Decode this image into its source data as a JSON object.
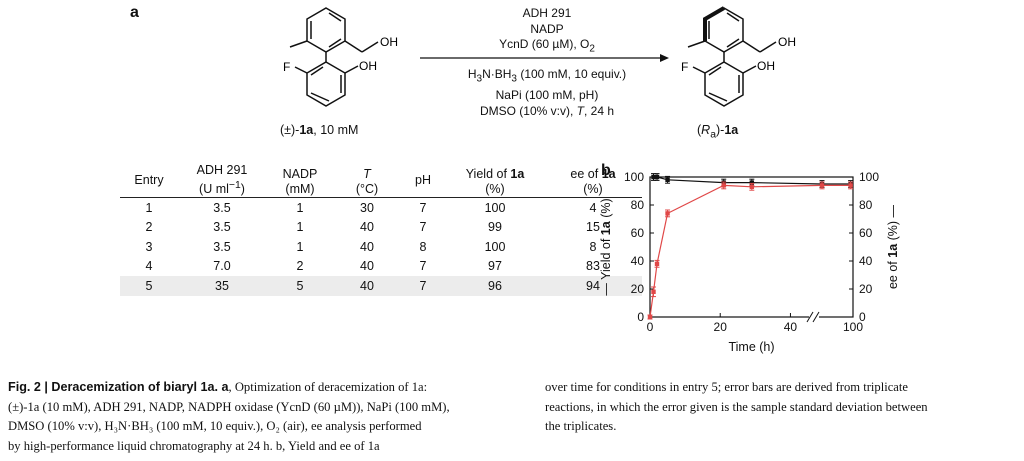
{
  "panel_a": {
    "label": "a",
    "reactant": {
      "prefix": "(±)-",
      "name": "1a",
      "suffix": ", 10 mM",
      "atoms": {
        "oh": "OH",
        "f": "F"
      }
    },
    "product": {
      "prefix": "(",
      "r": "R",
      "sub": "a",
      "mid": ")-",
      "name": "1a"
    },
    "conditions_above": [
      "ADH 291",
      "NADP"
    ],
    "ycnd": {
      "text": "YcnD (60 µM), O",
      "sub": "2"
    },
    "borane": {
      "h": "H",
      "s1": "3",
      "n": "N·BH",
      "s2": "3",
      "rest": " (100 mM, 10 equiv.)"
    },
    "napi": "NaPi (100 mM, pH)",
    "dmso": {
      "pre": "DMSO (10% v:v), ",
      "t": "T",
      "post": ", 24 h"
    }
  },
  "table": {
    "headers": [
      {
        "l1": "Entry",
        "l2": ""
      },
      {
        "l1": "ADH 291",
        "l2": "(U ml",
        "sup": "−1",
        "l2b": ")"
      },
      {
        "l1": "NADP",
        "l2": "(mM)"
      },
      {
        "l1": "T",
        "l2": "(°C)"
      },
      {
        "l1": "pH",
        "l2": ""
      },
      {
        "l1": "Yield of ",
        "b": "1a",
        "l2": "(%)"
      },
      {
        "l1": "ee of ",
        "b": "1a",
        "l2": "(%)"
      }
    ],
    "rows": [
      [
        "1",
        "3.5",
        "1",
        "30",
        "7",
        "100",
        "4"
      ],
      [
        "2",
        "3.5",
        "1",
        "40",
        "7",
        "99",
        "15"
      ],
      [
        "3",
        "3.5",
        "1",
        "40",
        "8",
        "100",
        "8"
      ],
      [
        "4",
        "7.0",
        "2",
        "40",
        "7",
        "97",
        "83"
      ],
      [
        "5",
        "35",
        "5",
        "40",
        "7",
        "96",
        "94"
      ]
    ],
    "highlight_row": 5
  },
  "chart_data": {
    "type": "line",
    "panel_label": "b",
    "xlabel": "Time (h)",
    "ylabel_left": {
      "pre": "— Yield of ",
      "b": "1a",
      "post": " (%)"
    },
    "ylabel_right": {
      "pre": "ee of ",
      "b": "1a",
      "post": " (%) —"
    },
    "x_ticks": [
      "0",
      "20",
      "40",
      "100"
    ],
    "y_ticks": [
      "0",
      "20",
      "40",
      "60",
      "80",
      "100"
    ],
    "ylim": [
      0,
      100
    ],
    "x_axis_break": true,
    "series": [
      {
        "color": "#111111",
        "x": [
          1,
          2,
          5,
          21,
          29,
          48,
          96
        ],
        "y": [
          100,
          100,
          98,
          96,
          96,
          95,
          95
        ],
        "err": [
          1,
          1,
          1,
          1,
          1,
          1,
          1
        ]
      },
      {
        "color": "#e04848",
        "x": [
          0,
          1,
          2,
          5,
          21,
          29,
          48,
          96
        ],
        "y": [
          0,
          18,
          38,
          74,
          94,
          93,
          94,
          94
        ],
        "err": [
          0,
          2,
          1,
          1,
          1,
          1,
          1,
          1
        ]
      }
    ]
  },
  "caption": {
    "fig": "Fig. 2 | ",
    "title": "Deracemization of biaryl 1a. a",
    "left_lines": [
      ", Optimization of deracemization of 1a:",
      "(±)-1a (10 mM), ADH 291, NADP, NADPH oxidase (YcnD (60 µM)), NaPi (100 mM),",
      "DMSO (10% v:v), H₃N·BH₃ (100 mM, 10 equiv.), O₂ (air), ee analysis performed",
      "by high-performance liquid chromatography at 24 h. b, Yield and ee of 1a"
    ],
    "right_lines": [
      "over time for conditions in entry 5; error bars are derived from triplicate",
      "reactions, in which the error given is the sample standard deviation between",
      "the triplicates."
    ]
  }
}
